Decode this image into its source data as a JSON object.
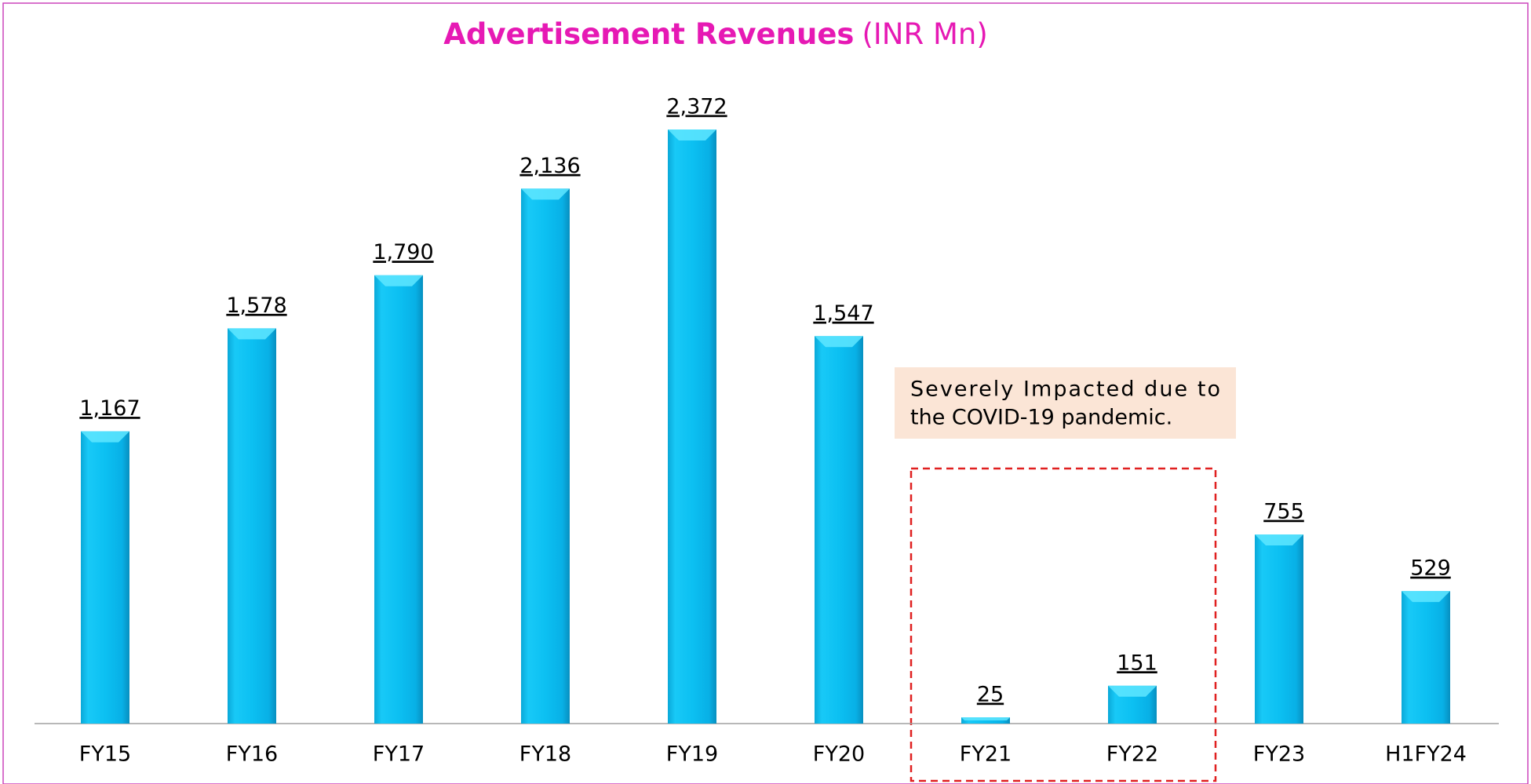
{
  "chart_data": {
    "type": "bar",
    "title": "Advertisement Revenues",
    "subtitle": "(INR Mn)",
    "categories": [
      "FY15",
      "FY16",
      "FY17",
      "FY18",
      "FY19",
      "FY20",
      "FY21",
      "FY22",
      "FY23",
      "H1FY24"
    ],
    "values": [
      1167,
      1578,
      1790,
      2136,
      2372,
      1547,
      25,
      151,
      755,
      529
    ],
    "value_labels": [
      "1,167",
      "1,578",
      "1,790",
      "2,136",
      "2,372",
      "1,547",
      "25",
      "151",
      "755",
      "529"
    ],
    "color": "#12c3f3",
    "annotations": [
      "Severely Impacted due to",
      "the COVID-19 pandemic."
    ]
  }
}
